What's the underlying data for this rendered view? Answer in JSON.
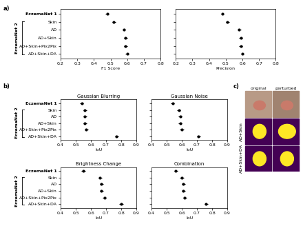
{
  "chart_data": [
    {
      "type": "dot",
      "orientation": "horizontal",
      "title": null,
      "xlabel": "F1 Score",
      "categories": [
        "EczemaNet 1",
        "Skin",
        "AD",
        "AD+Skin",
        "AD+Skin+Pix2Pix",
        "AD+Skin+DA"
      ],
      "values": [
        0.48,
        0.52,
        0.58,
        0.59,
        0.59,
        0.6
      ],
      "errors": [
        0.01,
        0.01,
        0.01,
        0.01,
        0.01,
        0.01
      ],
      "xlim": [
        0.2,
        0.8
      ],
      "xticks": [
        0.2,
        0.3,
        0.4,
        0.5,
        0.6,
        0.7,
        0.8
      ],
      "color": "#000000",
      "marker": "o",
      "group_label": "EczemaNet 2"
    },
    {
      "type": "dot",
      "orientation": "horizontal",
      "title": null,
      "xlabel": "Precision",
      "categories": [
        "EczemaNet 1",
        "Skin",
        "AD",
        "AD+Skin",
        "AD+Skin+Pix2Pix",
        "AD+Skin+DA"
      ],
      "values": [
        0.48,
        0.51,
        0.58,
        0.59,
        0.59,
        0.6
      ],
      "errors": [
        0.01,
        0.01,
        0.01,
        0.01,
        0.01,
        0.01
      ],
      "xlim": [
        0.2,
        0.8
      ],
      "xticks": [
        0.2,
        0.3,
        0.4,
        0.5,
        0.6,
        0.7,
        0.8
      ],
      "color": "#000000",
      "marker": "o",
      "tick_labels": "x"
    },
    {
      "type": "dot",
      "orientation": "horizontal",
      "title": "Gaussian Blurring",
      "xlabel": "IoU",
      "categories": [
        "EczemaNet 1",
        "Skin",
        "AD",
        "AD+Skin",
        "AD+Skin+Pix2Pix",
        "AD+Skin+DA"
      ],
      "values": [
        0.54,
        0.56,
        0.56,
        0.56,
        0.57,
        0.77
      ],
      "errors": [
        0.012,
        0.012,
        0.012,
        0.012,
        0.012,
        0.012
      ],
      "xlim": [
        0.4,
        0.9
      ],
      "xticks": [
        0.4,
        0.5,
        0.6,
        0.7,
        0.8,
        0.9
      ],
      "color": "#000000",
      "marker": "o",
      "group_label": "EczemaNet 2"
    },
    {
      "type": "dot",
      "orientation": "horizontal",
      "title": "Gaussian Noise",
      "xlabel": "IoU",
      "categories": [
        "EczemaNet 1",
        "Skin",
        "AD",
        "AD+Skin",
        "AD+Skin+Pix2Pix",
        "AD+Skin+DA"
      ],
      "values": [
        0.54,
        0.58,
        0.59,
        0.59,
        0.6,
        0.71
      ],
      "errors": [
        0.012,
        0.012,
        0.012,
        0.012,
        0.012,
        0.012
      ],
      "xlim": [
        0.4,
        0.9
      ],
      "xticks": [
        0.4,
        0.5,
        0.6,
        0.7,
        0.8,
        0.9
      ],
      "color": "#000000",
      "marker": "o",
      "tick_labels": "x"
    },
    {
      "type": "dot",
      "orientation": "horizontal",
      "title": "Brightness Change",
      "xlabel": "IoU",
      "categories": [
        "EczemaNet 1",
        "Skin",
        "AD",
        "AD+Skin",
        "AD+Skin+Pix2Pix",
        "AD+Skin+DA"
      ],
      "values": [
        0.55,
        0.66,
        0.67,
        0.67,
        0.69,
        0.8
      ],
      "errors": [
        0.012,
        0.012,
        0.012,
        0.012,
        0.012,
        0.012
      ],
      "xlim": [
        0.4,
        0.9
      ],
      "xticks": [
        0.4,
        0.5,
        0.6,
        0.7,
        0.8,
        0.9
      ],
      "color": "#000000",
      "marker": "o",
      "group_label": "EczemaNet 2"
    },
    {
      "type": "dot",
      "orientation": "horizontal",
      "title": "Combination",
      "xlabel": "IoU",
      "categories": [
        "EczemaNet 1",
        "Skin",
        "AD",
        "AD+Skin",
        "AD+Skin+Pix2Pix",
        "AD+Skin+DA"
      ],
      "values": [
        0.56,
        0.6,
        0.61,
        0.61,
        0.62,
        0.76
      ],
      "errors": [
        0.012,
        0.012,
        0.012,
        0.012,
        0.012,
        0.012
      ],
      "xlim": [
        0.4,
        0.9
      ],
      "xticks": [
        0.4,
        0.5,
        0.6,
        0.7,
        0.8,
        0.9
      ],
      "color": "#000000",
      "marker": "o",
      "tick_labels": "x"
    }
  ],
  "panel_labels": [
    "a)",
    "b)",
    "c)"
  ],
  "panel_c": {
    "columns": [
      "original",
      "perturbed"
    ],
    "rows": [
      "AD+Skin",
      "AD+Skin+DA"
    ]
  }
}
